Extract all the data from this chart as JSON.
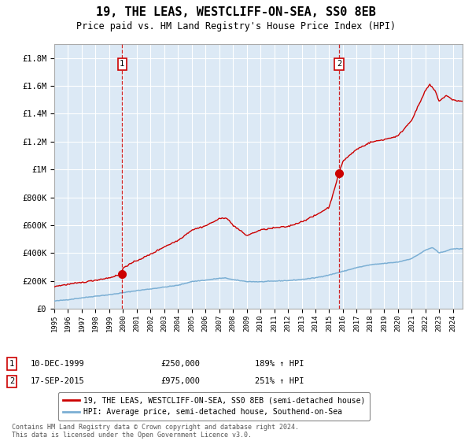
{
  "title": "19, THE LEAS, WESTCLIFF-ON-SEA, SS0 8EB",
  "subtitle": "Price paid vs. HM Land Registry's House Price Index (HPI)",
  "title_fontsize": 11,
  "subtitle_fontsize": 8.5,
  "bg_color": "#dce9f5",
  "fig_bg_color": "#ffffff",
  "red_line_color": "#cc0000",
  "blue_line_color": "#7bafd4",
  "marker_color": "#cc0000",
  "dashed_line_color": "#cc0000",
  "ylim": [
    0,
    1900000
  ],
  "xlim_start": 1995.0,
  "xlim_end": 2024.7,
  "yticks": [
    0,
    200000,
    400000,
    600000,
    800000,
    1000000,
    1200000,
    1400000,
    1600000,
    1800000
  ],
  "ytick_labels": [
    "£0",
    "£200K",
    "£400K",
    "£600K",
    "£800K",
    "£1M",
    "£1.2M",
    "£1.4M",
    "£1.6M",
    "£1.8M"
  ],
  "xtick_years": [
    1995,
    1996,
    1997,
    1998,
    1999,
    2000,
    2001,
    2002,
    2003,
    2004,
    2005,
    2006,
    2007,
    2008,
    2009,
    2010,
    2011,
    2012,
    2013,
    2014,
    2015,
    2016,
    2017,
    2018,
    2019,
    2020,
    2021,
    2022,
    2023,
    2024
  ],
  "sale1_x": 1999.94,
  "sale1_y": 250000,
  "sale1_label": "1",
  "sale2_x": 2015.71,
  "sale2_y": 975000,
  "sale2_label": "2",
  "legend_entries": [
    "19, THE LEAS, WESTCLIFF-ON-SEA, SS0 8EB (semi-detached house)",
    "HPI: Average price, semi-detached house, Southend-on-Sea"
  ],
  "table_rows": [
    [
      "1",
      "10-DEC-1999",
      "£250,000",
      "189% ↑ HPI"
    ],
    [
      "2",
      "17-SEP-2015",
      "£975,000",
      "251% ↑ HPI"
    ]
  ],
  "footnote": "Contains HM Land Registry data © Crown copyright and database right 2024.\nThis data is licensed under the Open Government Licence v3.0.",
  "grid_color": "#ffffff",
  "grid_linewidth": 0.8
}
